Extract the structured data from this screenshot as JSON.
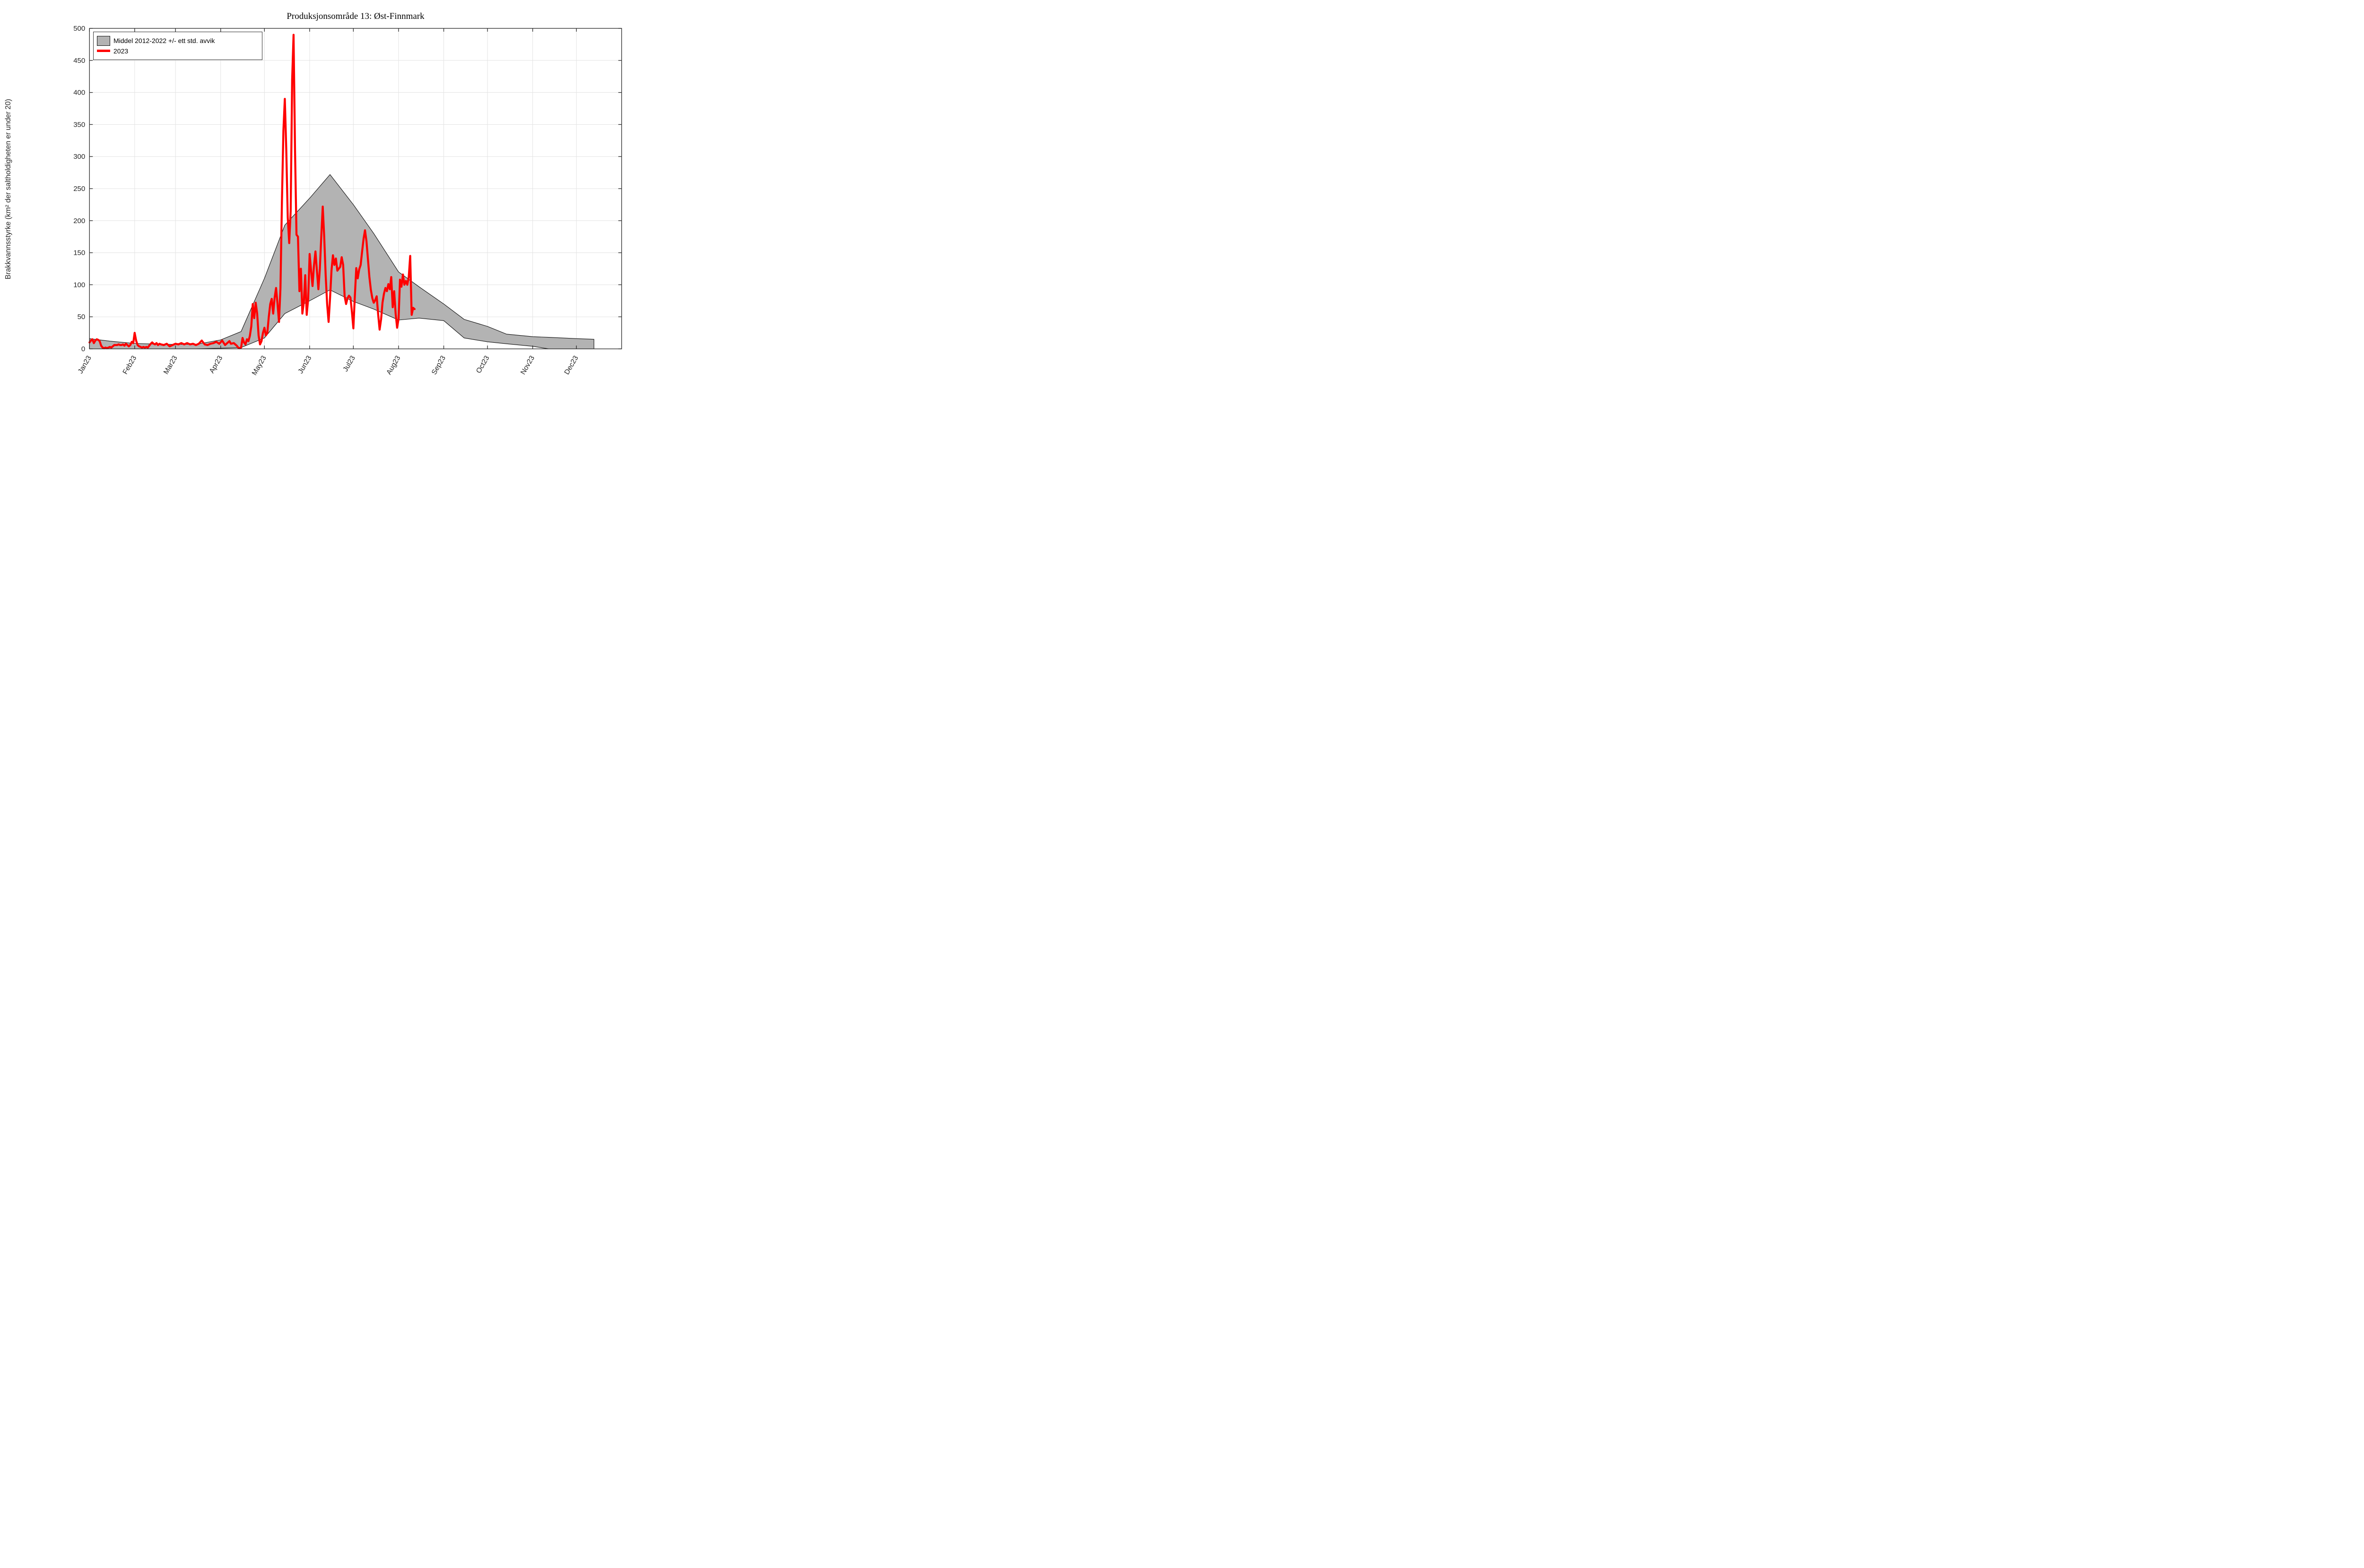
{
  "title": "Produksjonsområde 13: Øst-Finnmark",
  "legend": [
    {
      "label": "Middel 2012-2022 +/- ett std. avvik",
      "swatch": "band"
    },
    {
      "label": "2023",
      "swatch": "line"
    }
  ],
  "colors": {
    "background": "#ffffff",
    "band_fill": "#b3b3b3",
    "band_edge": "#111111",
    "line_2023": "#ff0000",
    "grid": "#e3e3e3",
    "axis": "#262626",
    "tick_text": "#262626"
  },
  "chart_data": {
    "type": "area+line",
    "title": "Produksjonsområde 13: Øst-Finnmark",
    "xlabel": "",
    "ylabel": "Brakkvannsstyrke (km² der saltholdigheten er under 20)",
    "ylim": [
      0,
      500
    ],
    "y_ticks": [
      0,
      50,
      100,
      150,
      200,
      250,
      300,
      350,
      400,
      450,
      500
    ],
    "x_range_days": [
      1,
      366
    ],
    "x_ticks": [
      {
        "day": 1,
        "label": "Jan23"
      },
      {
        "day": 32,
        "label": "Feb23"
      },
      {
        "day": 60,
        "label": "Mar23"
      },
      {
        "day": 91,
        "label": "Apr23"
      },
      {
        "day": 121,
        "label": "May23"
      },
      {
        "day": 152,
        "label": "Jun23"
      },
      {
        "day": 182,
        "label": "Jul23"
      },
      {
        "day": 213,
        "label": "Aug23"
      },
      {
        "day": 244,
        "label": "Sep23"
      },
      {
        "day": 274,
        "label": "Oct23"
      },
      {
        "day": 305,
        "label": "Nov23"
      },
      {
        "day": 335,
        "label": "Dec23"
      }
    ],
    "x_tick_rotation_deg": 60,
    "grid": true,
    "legend_position": "top-left",
    "series": [
      {
        "name": "Middel 2012-2022 +/- ett std. avvik",
        "type": "band",
        "description": "mean 2012-2022 +/- one std dev, points are [day_of_year, lower, upper]",
        "points": [
          [
            1,
            0,
            16
          ],
          [
            15,
            0,
            12
          ],
          [
            32,
            0,
            8.5
          ],
          [
            46,
            0,
            7.5
          ],
          [
            60,
            0,
            7
          ],
          [
            74,
            0,
            7
          ],
          [
            91,
            1,
            14
          ],
          [
            105,
            2,
            27
          ],
          [
            121,
            17,
            110
          ],
          [
            135,
            55,
            193
          ],
          [
            152,
            75,
            235
          ],
          [
            166,
            92,
            272
          ],
          [
            182,
            74,
            225
          ],
          [
            196,
            62,
            180
          ],
          [
            213,
            45,
            120
          ],
          [
            227,
            48,
            97
          ],
          [
            244,
            44,
            70
          ],
          [
            258,
            17,
            46
          ],
          [
            274,
            11,
            35
          ],
          [
            287,
            8,
            23
          ],
          [
            305,
            4,
            19
          ],
          [
            316,
            0,
            18
          ],
          [
            335,
            0,
            16
          ],
          [
            347,
            0,
            15
          ]
        ]
      },
      {
        "name": "2023",
        "type": "line",
        "description": "daily values 2023, points are [day_of_year, value], data ends 12 Aug",
        "points": [
          [
            1,
            10
          ],
          [
            2,
            13
          ],
          [
            3,
            15
          ],
          [
            4,
            9
          ],
          [
            5,
            13
          ],
          [
            6,
            15
          ],
          [
            7,
            14
          ],
          [
            8,
            12
          ],
          [
            9,
            5
          ],
          [
            10,
            2
          ],
          [
            11,
            1
          ],
          [
            12,
            2
          ],
          [
            13,
            1
          ],
          [
            14,
            2
          ],
          [
            15,
            3
          ],
          [
            16,
            2
          ],
          [
            17,
            4
          ],
          [
            18,
            6
          ],
          [
            19,
            6
          ],
          [
            20,
            6
          ],
          [
            21,
            7
          ],
          [
            22,
            6
          ],
          [
            23,
            6
          ],
          [
            24,
            7
          ],
          [
            25,
            5
          ],
          [
            26,
            8
          ],
          [
            27,
            6
          ],
          [
            28,
            4
          ],
          [
            29,
            6
          ],
          [
            30,
            11
          ],
          [
            31,
            9
          ],
          [
            32,
            25
          ],
          [
            33,
            13
          ],
          [
            34,
            6
          ],
          [
            35,
            4
          ],
          [
            36,
            3
          ],
          [
            37,
            2
          ],
          [
            38,
            3
          ],
          [
            39,
            2
          ],
          [
            40,
            3
          ],
          [
            41,
            2
          ],
          [
            42,
            5
          ],
          [
            43,
            8
          ],
          [
            44,
            10
          ],
          [
            45,
            8
          ],
          [
            46,
            7
          ],
          [
            47,
            9
          ],
          [
            48,
            6
          ],
          [
            49,
            8
          ],
          [
            50,
            7
          ],
          [
            52,
            6
          ],
          [
            54,
            8
          ],
          [
            56,
            4
          ],
          [
            58,
            6
          ],
          [
            60,
            8
          ],
          [
            62,
            7
          ],
          [
            64,
            9
          ],
          [
            66,
            7
          ],
          [
            68,
            9
          ],
          [
            70,
            7
          ],
          [
            72,
            8
          ],
          [
            74,
            6
          ],
          [
            76,
            8
          ],
          [
            78,
            13
          ],
          [
            80,
            7
          ],
          [
            82,
            6
          ],
          [
            84,
            8
          ],
          [
            86,
            9
          ],
          [
            88,
            11
          ],
          [
            90,
            8
          ],
          [
            92,
            13
          ],
          [
            94,
            6
          ],
          [
            96,
            10
          ],
          [
            97,
            12
          ],
          [
            98,
            8
          ],
          [
            100,
            9
          ],
          [
            102,
            5
          ],
          [
            103,
            2
          ],
          [
            104,
            1
          ],
          [
            105,
            2
          ],
          [
            106,
            17
          ],
          [
            107,
            10
          ],
          [
            108,
            7
          ],
          [
            109,
            15
          ],
          [
            110,
            12
          ],
          [
            111,
            20
          ],
          [
            112,
            35
          ],
          [
            113,
            70
          ],
          [
            114,
            48
          ],
          [
            115,
            72
          ],
          [
            116,
            55
          ],
          [
            117,
            21
          ],
          [
            118,
            7
          ],
          [
            119,
            12
          ],
          [
            120,
            25
          ],
          [
            121,
            33
          ],
          [
            122,
            21
          ],
          [
            123,
            25
          ],
          [
            124,
            50
          ],
          [
            125,
            70
          ],
          [
            126,
            78
          ],
          [
            127,
            55
          ],
          [
            128,
            80
          ],
          [
            129,
            95
          ],
          [
            130,
            70
          ],
          [
            131,
            42
          ],
          [
            132,
            95
          ],
          [
            133,
            230
          ],
          [
            134,
            340
          ],
          [
            135,
            390
          ],
          [
            136,
            310
          ],
          [
            137,
            205
          ],
          [
            138,
            165
          ],
          [
            139,
            215
          ],
          [
            140,
            420
          ],
          [
            141,
            490
          ],
          [
            142,
            310
          ],
          [
            143,
            178
          ],
          [
            144,
            175
          ],
          [
            145,
            90
          ],
          [
            146,
            125
          ],
          [
            147,
            55
          ],
          [
            148,
            72
          ],
          [
            149,
            115
          ],
          [
            150,
            53
          ],
          [
            151,
            78
          ],
          [
            152,
            148
          ],
          [
            153,
            122
          ],
          [
            154,
            98
          ],
          [
            155,
            130
          ],
          [
            156,
            152
          ],
          [
            157,
            122
          ],
          [
            158,
            93
          ],
          [
            159,
            125
          ],
          [
            160,
            175
          ],
          [
            161,
            222
          ],
          [
            162,
            175
          ],
          [
            163,
            115
          ],
          [
            164,
            70
          ],
          [
            165,
            42
          ],
          [
            166,
            78
          ],
          [
            167,
            122
          ],
          [
            168,
            146
          ],
          [
            169,
            131
          ],
          [
            170,
            141
          ],
          [
            171,
            122
          ],
          [
            172,
            125
          ],
          [
            173,
            128
          ],
          [
            174,
            143
          ],
          [
            175,
            131
          ],
          [
            176,
            82
          ],
          [
            177,
            70
          ],
          [
            178,
            79
          ],
          [
            179,
            83
          ],
          [
            180,
            80
          ],
          [
            181,
            58
          ],
          [
            182,
            32
          ],
          [
            183,
            82
          ],
          [
            184,
            126
          ],
          [
            185,
            110
          ],
          [
            186,
            124
          ],
          [
            187,
            131
          ],
          [
            188,
            152
          ],
          [
            189,
            172
          ],
          [
            190,
            185
          ],
          [
            191,
            168
          ],
          [
            192,
            140
          ],
          [
            193,
            112
          ],
          [
            194,
            92
          ],
          [
            195,
            79
          ],
          [
            196,
            72
          ],
          [
            197,
            76
          ],
          [
            198,
            82
          ],
          [
            199,
            54
          ],
          [
            200,
            30
          ],
          [
            201,
            46
          ],
          [
            202,
            72
          ],
          [
            203,
            86
          ],
          [
            204,
            95
          ],
          [
            205,
            90
          ],
          [
            206,
            101
          ],
          [
            207,
            93
          ],
          [
            208,
            112
          ],
          [
            209,
            65
          ],
          [
            210,
            90
          ],
          [
            211,
            55
          ],
          [
            212,
            33
          ],
          [
            213,
            47
          ],
          [
            214,
            108
          ],
          [
            215,
            97
          ],
          [
            216,
            116
          ],
          [
            217,
            100
          ],
          [
            218,
            106
          ],
          [
            219,
            100
          ],
          [
            220,
            112
          ],
          [
            221,
            145
          ],
          [
            222,
            53
          ],
          [
            223,
            64
          ],
          [
            224,
            62
          ]
        ]
      }
    ]
  }
}
